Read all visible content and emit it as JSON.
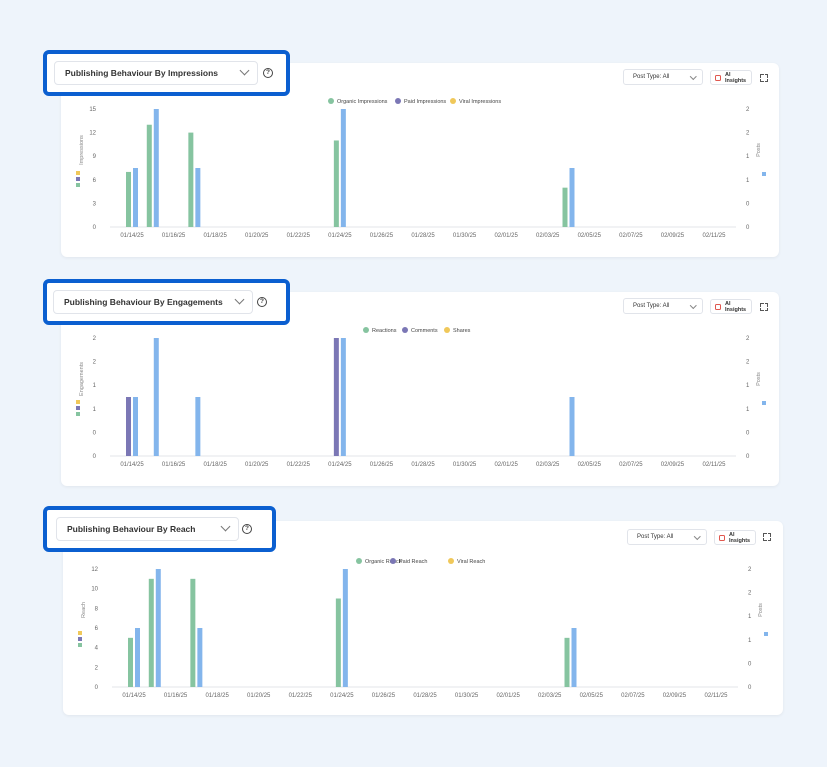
{
  "colors": {
    "green": "#86c4a0",
    "purple": "#7b77b5",
    "yellow": "#f0c85a",
    "blue": "#83b5ec",
    "highlight": "#0b5fd0"
  },
  "dates": [
    "01/14/25",
    "01/16/25",
    "01/18/25",
    "01/20/25",
    "01/22/25",
    "01/24/25",
    "01/26/25",
    "01/28/25",
    "01/30/25",
    "02/01/25",
    "02/03/25",
    "02/05/25",
    "02/07/25",
    "02/09/25",
    "02/11/25"
  ],
  "panels": [
    {
      "title": "Publishing Behaviour By Impressions",
      "post_type": "Post Type: All",
      "ai_label": "AI Insights",
      "help_glyph": "?",
      "chart_data": {
        "type": "bar",
        "x_ticks": [
          "01/14/25",
          "01/16/25",
          "01/18/25",
          "01/20/25",
          "01/22/25",
          "01/24/25",
          "01/26/25",
          "01/28/25",
          "01/30/25",
          "02/01/25",
          "02/03/25",
          "02/05/25",
          "02/07/25",
          "02/09/25",
          "02/11/25"
        ],
        "ylabel": "Impressions",
        "y2label": "Posts",
        "ylim": [
          0,
          15
        ],
        "y_ticks": [
          "0",
          "3",
          "6",
          "9",
          "12",
          "15"
        ],
        "y2lim": [
          0,
          2
        ],
        "y2_ticks": [
          "0",
          "0",
          "1",
          "1",
          "2",
          "2"
        ],
        "legend": [
          "Organic Impressions",
          "Paid Impressions",
          "Viral Impressions"
        ],
        "legend_position": "top-center",
        "grid": false,
        "series": [
          {
            "name": "Organic Impressions",
            "color": "green",
            "points": [
              {
                "x": "01/14/25",
                "y": 7
              },
              {
                "x": "01/15/25",
                "y": 13
              },
              {
                "x": "01/17/25",
                "y": 12
              },
              {
                "x": "01/24/25",
                "y": 11
              },
              {
                "x": "02/04/25",
                "y": 5
              }
            ]
          },
          {
            "name": "Paid Impressions",
            "color": "purple",
            "points": []
          },
          {
            "name": "Viral Impressions",
            "color": "yellow",
            "points": []
          },
          {
            "name": "Posts",
            "axis": "right",
            "color": "blue",
            "points": [
              {
                "x": "01/14/25",
                "y": 1
              },
              {
                "x": "01/15/25",
                "y": 2
              },
              {
                "x": "01/17/25",
                "y": 1
              },
              {
                "x": "01/24/25",
                "y": 2
              },
              {
                "x": "02/04/25",
                "y": 1
              }
            ]
          }
        ]
      }
    },
    {
      "title": "Publishing Behaviour By Engagements",
      "post_type": "Post Type: All",
      "ai_label": "AI Insights",
      "help_glyph": "?",
      "chart_data": {
        "type": "bar",
        "x_ticks": [
          "01/14/25",
          "01/16/25",
          "01/18/25",
          "01/20/25",
          "01/22/25",
          "01/24/25",
          "01/26/25",
          "01/28/25",
          "01/30/25",
          "02/01/25",
          "02/03/25",
          "02/05/25",
          "02/07/25",
          "02/09/25",
          "02/11/25"
        ],
        "ylabel": "Engagements",
        "y2label": "Posts",
        "ylim": [
          0,
          2
        ],
        "y_ticks": [
          "0",
          "0",
          "1",
          "1",
          "2",
          "2"
        ],
        "y2lim": [
          0,
          2
        ],
        "y2_ticks": [
          "0",
          "0",
          "1",
          "1",
          "2",
          "2"
        ],
        "legend": [
          "Reactions",
          "Comments",
          "Shares"
        ],
        "legend_position": "top-center",
        "grid": false,
        "series": [
          {
            "name": "Reactions",
            "color": "green",
            "points": []
          },
          {
            "name": "Comments",
            "color": "purple",
            "points": [
              {
                "x": "01/14/25",
                "y": 1
              },
              {
                "x": "01/24/25",
                "y": 2
              }
            ]
          },
          {
            "name": "Shares",
            "color": "yellow",
            "points": []
          },
          {
            "name": "Posts",
            "axis": "right",
            "color": "blue",
            "points": [
              {
                "x": "01/14/25",
                "y": 1
              },
              {
                "x": "01/15/25",
                "y": 2
              },
              {
                "x": "01/17/25",
                "y": 1
              },
              {
                "x": "01/24/25",
                "y": 2
              },
              {
                "x": "02/04/25",
                "y": 1
              }
            ]
          }
        ]
      }
    },
    {
      "title": "Publishing Behaviour By Reach",
      "post_type": "Post Type: All",
      "ai_label": "AI Insights",
      "help_glyph": "?",
      "chart_data": {
        "type": "bar",
        "x_ticks": [
          "01/14/25",
          "01/16/25",
          "01/18/25",
          "01/20/25",
          "01/22/25",
          "01/24/25",
          "01/26/25",
          "01/28/25",
          "01/30/25",
          "02/01/25",
          "02/03/25",
          "02/05/25",
          "02/07/25",
          "02/09/25",
          "02/11/25"
        ],
        "ylabel": "Reach",
        "y2label": "Posts",
        "ylim": [
          0,
          12
        ],
        "y_ticks": [
          "0",
          "2",
          "4",
          "6",
          "8",
          "10",
          "12"
        ],
        "y2lim": [
          0,
          2
        ],
        "y2_ticks": [
          "0",
          "0",
          "1",
          "1",
          "2",
          "2"
        ],
        "legend": [
          "Organic Reach",
          "Paid Reach",
          "Viral Reach"
        ],
        "legend_position": "top-center",
        "grid": false,
        "series": [
          {
            "name": "Organic Reach",
            "color": "green",
            "points": [
              {
                "x": "01/14/25",
                "y": 5
              },
              {
                "x": "01/15/25",
                "y": 11
              },
              {
                "x": "01/17/25",
                "y": 11
              },
              {
                "x": "01/24/25",
                "y": 9
              },
              {
                "x": "02/04/25",
                "y": 5
              }
            ]
          },
          {
            "name": "Paid Reach",
            "color": "purple",
            "points": []
          },
          {
            "name": "Viral Reach",
            "color": "yellow",
            "points": []
          },
          {
            "name": "Posts",
            "axis": "right",
            "color": "blue",
            "points": [
              {
                "x": "01/14/25",
                "y": 1
              },
              {
                "x": "01/15/25",
                "y": 2
              },
              {
                "x": "01/17/25",
                "y": 1
              },
              {
                "x": "01/24/25",
                "y": 2
              },
              {
                "x": "02/04/25",
                "y": 1
              }
            ]
          }
        ]
      }
    }
  ]
}
